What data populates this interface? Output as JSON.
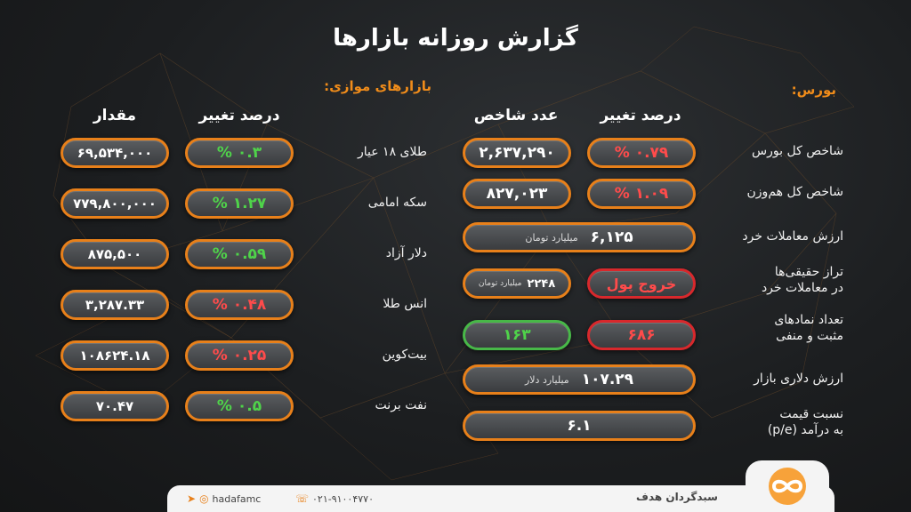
{
  "title": "گزارش روزانه بازارها",
  "bourse": {
    "section_label": "بورس:",
    "col_change": "درصد تغییر",
    "col_index": "عدد شاخص",
    "total_index": {
      "label": "شاخص کل بورس",
      "change": "۰.۷۹ %",
      "value": "۲,۶۳۷,۲۹۰"
    },
    "equal_weight": {
      "label": "شاخص کل هم‌وزن",
      "change": "۱.۰۹ %",
      "value": "۸۲۷,۰۲۳"
    },
    "retail_value": {
      "label": "ارزش معاملات خرد",
      "value": "۶,۱۲۵",
      "unit": "میلیارد تومان"
    },
    "real_balance": {
      "label_1": "تراز حقیقی‌ها",
      "label_2": "در معاملات خرد",
      "value": "۲۲۴۸",
      "unit": "میلیارد تومان",
      "status": "خروج پول"
    },
    "symbols": {
      "label_1": "تعداد نمادهای",
      "label_2": "مثبت و منفی",
      "negative": "۶۸۶",
      "positive": "۱۶۳"
    },
    "dollar_value": {
      "label": "ارزش دلاری بازار",
      "value": "۱۰۷.۲۹",
      "unit": "میلیارد دلار"
    },
    "pe": {
      "label_1": "نسبت قیمت",
      "label_2": "به درآمد (p/e)",
      "value": "۶.۱"
    }
  },
  "parallel": {
    "section_label": "بازارهای موازی:",
    "col_change": "درصد تغییر",
    "col_amount": "مقدار",
    "rows": [
      {
        "label": "طلای ۱۸ عیار",
        "change": "۰.۳ %",
        "direction": "up",
        "amount": "۶۹,۵۳۴,۰۰۰"
      },
      {
        "label": "سکه امامی",
        "change": "۱.۲۷ %",
        "direction": "up",
        "amount": "۷۷۹,۸۰۰,۰۰۰"
      },
      {
        "label": "دلار آزاد",
        "change": "۰.۵۹ %",
        "direction": "up",
        "amount": "۸۷۵,۵۰۰"
      },
      {
        "label": "انس طلا",
        "change": "۰.۴۸ %",
        "direction": "down",
        "amount": "۳,۲۸۷.۳۳"
      },
      {
        "label": "بیت‌کوین",
        "change": "۰.۲۵ %",
        "direction": "down",
        "amount": "۱۰۸۶۲۴.۱۸"
      },
      {
        "label": "نفت برنت",
        "change": "۰.۵ %",
        "direction": "up",
        "amount": "۷۰.۴۷"
      }
    ]
  },
  "footer": {
    "brand": "سبدگردان هدف",
    "phone": "۰۲۱-۹۱۰۰۴۷۷۰",
    "social": "hadafamc"
  },
  "colors": {
    "accent": "#e8801a",
    "positive": "#4fd34a",
    "negative": "#ff4b4b"
  }
}
